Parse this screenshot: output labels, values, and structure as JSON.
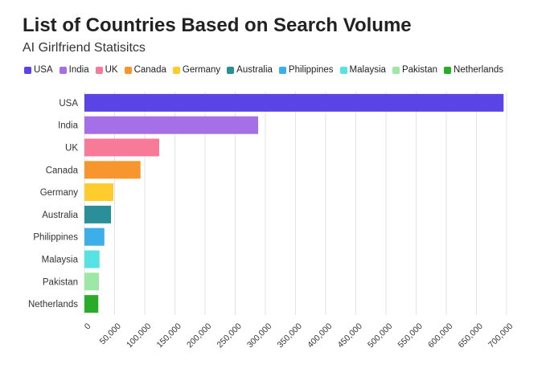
{
  "chart_data": {
    "type": "bar",
    "orientation": "horizontal",
    "title": "List of Countries Based on Search Volume",
    "subtitle": "AI Girlfriend Statisitcs",
    "categories": [
      "USA",
      "India",
      "UK",
      "Canada",
      "Germany",
      "Australia",
      "Philippines",
      "Malaysia",
      "Pakistan",
      "Netherlands"
    ],
    "values": [
      695000,
      288000,
      124000,
      93000,
      48000,
      44000,
      33000,
      25000,
      24000,
      23000
    ],
    "colors": [
      "#5b44e6",
      "#a56fe8",
      "#f77a99",
      "#f7962c",
      "#ffcc2e",
      "#2b8f9a",
      "#3caee9",
      "#57e3e3",
      "#9de8a6",
      "#2aab2a"
    ],
    "xlim": [
      0,
      700000
    ],
    "xticks": [
      "0",
      "50,000",
      "100,000",
      "150,000",
      "200,000",
      "250,000",
      "300,000",
      "350,000",
      "400,000",
      "450,000",
      "500,000",
      "550,000",
      "600,000",
      "650,000",
      "700,000"
    ],
    "legend": {
      "placement": "top-left",
      "entries": [
        "USA",
        "India",
        "UK",
        "Canada",
        "Germany",
        "Australia",
        "Philippines",
        "Malaysia",
        "Pakistan",
        "Netherlands"
      ]
    },
    "grid": "vertical"
  }
}
